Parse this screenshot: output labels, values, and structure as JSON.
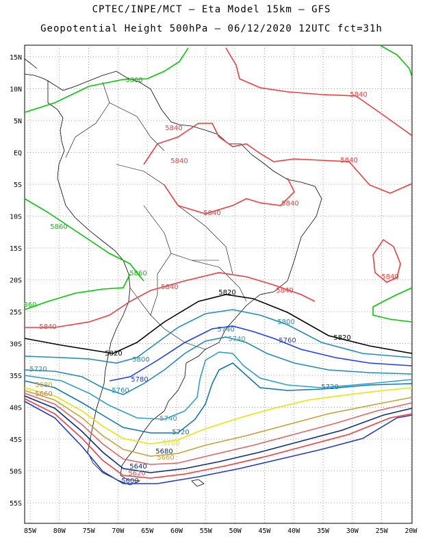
{
  "header": {
    "line1": "CPTEC/INPE/MCT –  Eta Model 15km – GFS",
    "line2": "Geopotential Height 500hPa – 06/12/2020 12UTC fct=31h"
  },
  "axes": {
    "lat_labels": [
      "15N",
      "10N",
      "5N",
      "EQ",
      "5S",
      "10S",
      "15S",
      "20S",
      "25S",
      "30S",
      "35S",
      "40S",
      "45S",
      "50S",
      "55S"
    ],
    "lon_labels": [
      "85W",
      "80W",
      "75W",
      "70W",
      "65W",
      "60W",
      "55W",
      "50W",
      "45W",
      "40W",
      "35W",
      "30W",
      "25W",
      "20W"
    ]
  },
  "contours": [
    {
      "value": "5860",
      "color": "#00c800"
    },
    {
      "value": "5840",
      "color": "#f03c3c"
    },
    {
      "value": "5820",
      "color": "#000000"
    },
    {
      "value": "5800",
      "color": "#1e8cb4"
    },
    {
      "value": "5780",
      "color": "#1e3cff"
    },
    {
      "value": "5760",
      "color": "#1e8cb4"
    },
    {
      "value": "5740",
      "color": "#28a0c8"
    },
    {
      "value": "5720",
      "color": "#0a78b4"
    },
    {
      "value": "5700",
      "color": "#e6e600"
    },
    {
      "value": "5680",
      "color": "#c8a032"
    },
    {
      "value": "5660",
      "color": "#e06464"
    },
    {
      "value": "5640",
      "color": "#0a2a8c"
    },
    {
      "value": "5620",
      "color": "#f03c3c"
    },
    {
      "value": "5600",
      "color": "#1e3cc8"
    }
  ],
  "contour_labels": [
    {
      "text": "5860",
      "color": "#00c800"
    },
    {
      "text": "5840",
      "color": "#f03c3c"
    },
    {
      "text": "5840",
      "color": "#f03c3c"
    },
    {
      "text": "5840",
      "color": "#f03c3c"
    },
    {
      "text": "5840",
      "color": "#f03c3c"
    },
    {
      "text": "5840",
      "color": "#f03c3c"
    },
    {
      "text": "5860",
      "color": "#00c800"
    },
    {
      "text": "5840",
      "color": "#f03c3c"
    },
    {
      "text": "5860",
      "color": "#00c800"
    },
    {
      "text": "5840",
      "color": "#f03c3c"
    },
    {
      "text": "5840",
      "color": "#f03c3c"
    },
    {
      "text": "5840",
      "color": "#f03c3c"
    },
    {
      "text": "860",
      "color": "#00c800"
    },
    {
      "text": "5820",
      "color": "#000000"
    },
    {
      "text": "5840",
      "color": "#f03c3c"
    },
    {
      "text": "5800",
      "color": "#1e8cb4"
    },
    {
      "text": "5760",
      "color": "#1e3cff"
    },
    {
      "text": "5740",
      "color": "#28a0c8"
    },
    {
      "text": "5820",
      "color": "#000000"
    },
    {
      "text": "5820",
      "color": "#000000"
    },
    {
      "text": "5800",
      "color": "#1e8cb4"
    },
    {
      "text": "5740",
      "color": "#1e8cb4"
    },
    {
      "text": "5720",
      "color": "#1e8cb4"
    },
    {
      "text": "5780",
      "color": "#1e3cff"
    },
    {
      "text": "5760",
      "color": "#1e8cb4"
    },
    {
      "text": "5720",
      "color": "#0a78b4"
    },
    {
      "text": "5740",
      "color": "#28a0c8"
    },
    {
      "text": "5720",
      "color": "#0a78b4"
    },
    {
      "text": "5700",
      "color": "#e6e600"
    },
    {
      "text": "5680",
      "color": "#0a2a8c"
    },
    {
      "text": "5660",
      "color": "#c8a032"
    },
    {
      "text": "5640",
      "color": "#0a2a8c"
    },
    {
      "text": "5620",
      "color": "#f03c3c"
    },
    {
      "text": "5600",
      "color": "#1e3cc8"
    },
    {
      "text": "5680",
      "color": "#c8a032"
    },
    {
      "text": "5660",
      "color": "#e06464"
    }
  ]
}
